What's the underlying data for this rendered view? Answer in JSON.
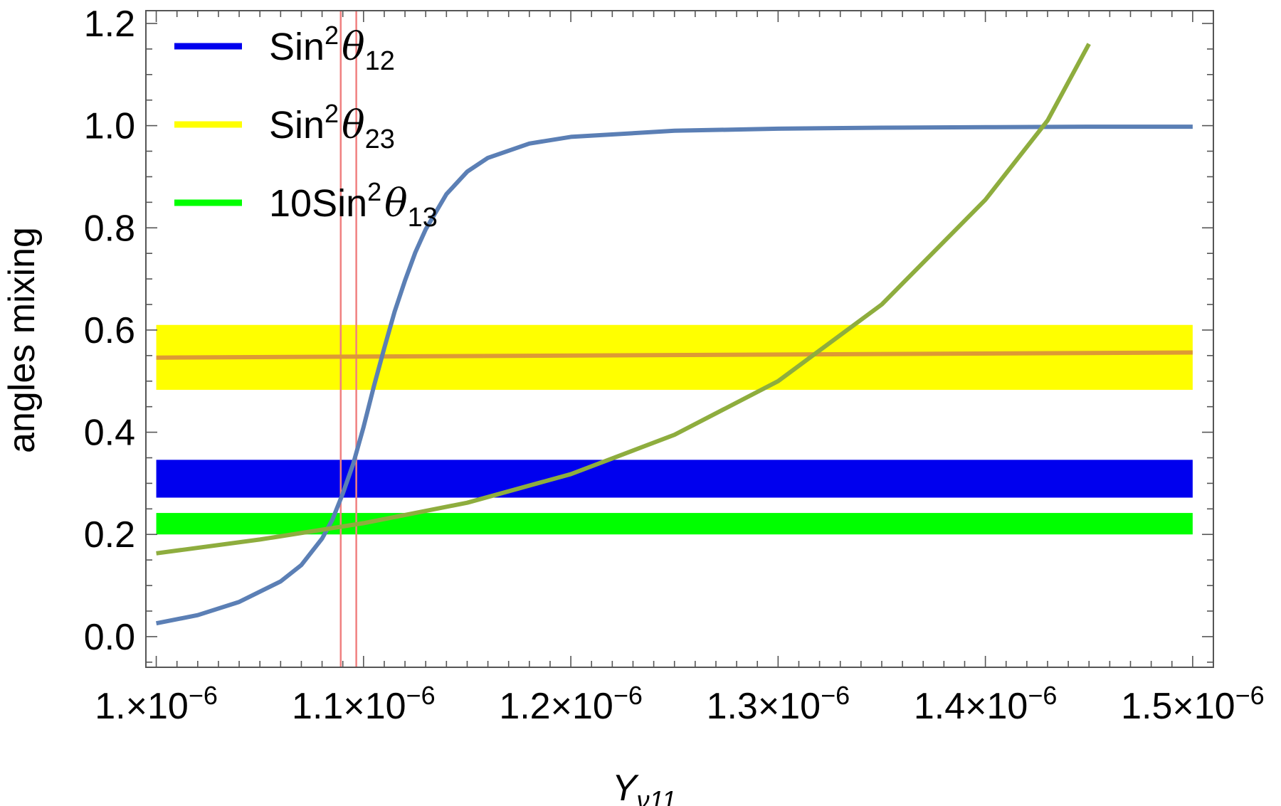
{
  "chart_data": {
    "type": "line",
    "xlabel": "Y",
    "xlabel_sub": "ν11",
    "ylabel": "angles mixing",
    "xlim": [
      9.95e-07,
      1.51e-06
    ],
    "ylim": [
      -0.06,
      1.225
    ],
    "grid": false,
    "legend_position": "top-left",
    "x_ticks": [
      {
        "value": 1e-06,
        "mant": "1.",
        "exp": "−6"
      },
      {
        "value": 1.1e-06,
        "mant": "1.1",
        "exp": "−6"
      },
      {
        "value": 1.2e-06,
        "mant": "1.2",
        "exp": "−6"
      },
      {
        "value": 1.3e-06,
        "mant": "1.3",
        "exp": "−6"
      },
      {
        "value": 1.4e-06,
        "mant": "1.4",
        "exp": "−6"
      },
      {
        "value": 1.5e-06,
        "mant": "1.5",
        "exp": "−6"
      }
    ],
    "y_ticks": [
      {
        "value": 0.0,
        "label": "0.0"
      },
      {
        "value": 0.2,
        "label": "0.2"
      },
      {
        "value": 0.4,
        "label": "0.4"
      },
      {
        "value": 0.6,
        "label": "0.6"
      },
      {
        "value": 0.8,
        "label": "0.8"
      },
      {
        "value": 1.0,
        "label": "1.0"
      },
      {
        "value": 1.2,
        "label": "1.2"
      }
    ],
    "legend": [
      {
        "prefix": "Sin",
        "sup": "2",
        "sym": "θ",
        "sub": "12",
        "color": "#0000ee"
      },
      {
        "prefix": "Sin",
        "sup": "2",
        "sym": "θ",
        "sub": "23",
        "color": "#ffff00"
      },
      {
        "prefix": "10Sin",
        "sup": "2",
        "sym": "θ",
        "sub": "13",
        "color": "#00ff00"
      }
    ],
    "bands": [
      {
        "name": "theta23-band",
        "y0": 0.483,
        "y1": 0.61,
        "color": "#ffff00"
      },
      {
        "name": "theta12-band",
        "y0": 0.272,
        "y1": 0.346,
        "color": "#0000ee"
      },
      {
        "name": "theta13-band",
        "y0": 0.2,
        "y1": 0.242,
        "color": "#00ff00"
      }
    ],
    "vertical_lines": [
      1.089e-06,
      1.0965e-06
    ],
    "vertical_line_color": "#f08080",
    "series": [
      {
        "color": "#5b7fb5",
        "points": [
          [
            1e-06,
            0.026
          ],
          [
            1.02e-06,
            0.042
          ],
          [
            1.04e-06,
            0.068
          ],
          [
            1.06e-06,
            0.108
          ],
          [
            1.07e-06,
            0.14
          ],
          [
            1.08e-06,
            0.192
          ],
          [
            1.085e-06,
            0.229
          ],
          [
            1.09e-06,
            0.28
          ],
          [
            1.095e-06,
            0.338
          ],
          [
            1.1e-06,
            0.41
          ],
          [
            1.105e-06,
            0.49
          ],
          [
            1.11e-06,
            0.565
          ],
          [
            1.115e-06,
            0.636
          ],
          [
            1.12e-06,
            0.697
          ],
          [
            1.125e-06,
            0.752
          ],
          [
            1.13e-06,
            0.797
          ],
          [
            1.14e-06,
            0.866
          ],
          [
            1.15e-06,
            0.91
          ],
          [
            1.16e-06,
            0.937
          ],
          [
            1.18e-06,
            0.965
          ],
          [
            1.2e-06,
            0.978
          ],
          [
            1.25e-06,
            0.99
          ],
          [
            1.3e-06,
            0.994
          ],
          [
            1.35e-06,
            0.996
          ],
          [
            1.4e-06,
            0.997
          ],
          [
            1.45e-06,
            0.998
          ],
          [
            1.5e-06,
            0.998
          ]
        ]
      },
      {
        "color": "#dd9a35",
        "points": [
          [
            1e-06,
            0.546
          ],
          [
            1.5e-06,
            0.556
          ]
        ]
      },
      {
        "color": "#8ead3e",
        "points": [
          [
            1e-06,
            0.163
          ],
          [
            1.05e-06,
            0.19
          ],
          [
            1.1e-06,
            0.222
          ],
          [
            1.15e-06,
            0.262
          ],
          [
            1.2e-06,
            0.318
          ],
          [
            1.25e-06,
            0.395
          ],
          [
            1.3e-06,
            0.5
          ],
          [
            1.35e-06,
            0.65
          ],
          [
            1.4e-06,
            0.855
          ],
          [
            1.43e-06,
            1.01
          ],
          [
            1.45e-06,
            1.16
          ]
        ]
      }
    ]
  }
}
